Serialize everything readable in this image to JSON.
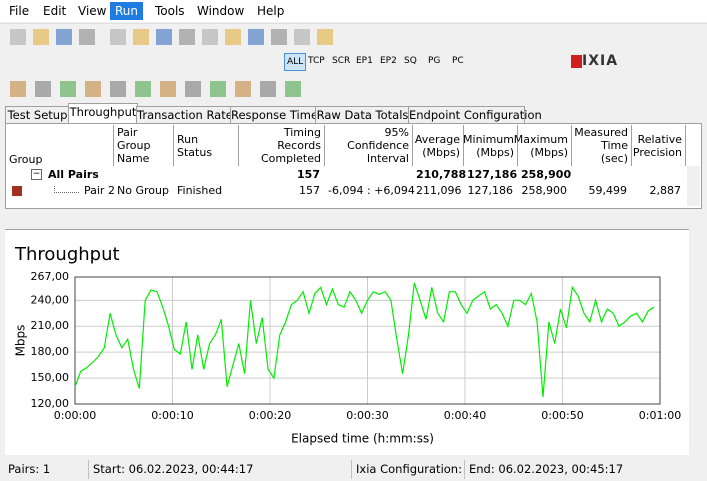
{
  "menu": [
    "File",
    "Edit",
    "View",
    "Run",
    "Tools",
    "Window",
    "Help"
  ],
  "toolbar_labels": [
    "ALL",
    "TCP",
    "SCR",
    "EP1",
    "EP2",
    "SQ",
    "PG",
    "PC"
  ],
  "brand": "IXIA",
  "tabs": [
    "Test Setup",
    "Throughput",
    "Transaction Rate",
    "Response Time",
    "Raw Data Totals",
    "Endpoint Configuration"
  ],
  "table": {
    "headers": [
      "Group",
      "Pair Group Name",
      "Run Status",
      "Timing Records Completed",
      "95% Confidence Interval",
      "Average (Mbps)",
      "Minimum (Mbps)",
      "Maximum (Mbps)",
      "Measured Time (sec)",
      "Relative Precision"
    ],
    "summary": {
      "group": "All Pairs",
      "timing_records": "157",
      "average": "210,788",
      "minimum": "127,186",
      "maximum": "258,900"
    },
    "pair": {
      "group": "Pair 2",
      "pair_group_name": "No Group",
      "run_status": "Finished",
      "timing_records": "157",
      "confidence": "-6,094 : +6,094",
      "average": "211,096",
      "minimum": "127,186",
      "maximum": "258,900",
      "measured_time": "59,499",
      "relative_precision": "2,887"
    }
  },
  "chart_data": {
    "type": "line",
    "title": "Throughput",
    "x_label": "Elapsed time (h:mm:ss)",
    "y_label": "Mbps",
    "color": "#00ee00",
    "grid": true,
    "x": [
      0,
      0.6,
      1.2,
      1.8,
      2.4,
      3,
      3.6,
      4.2,
      4.8,
      5.4,
      6,
      6.6,
      7.2,
      7.8,
      8.4,
      9,
      9.6,
      10.2,
      10.8,
      11.4,
      12,
      12.6,
      13.2,
      13.8,
      14.4,
      15,
      15.6,
      16.2,
      16.8,
      17.4,
      18,
      18.6,
      19.2,
      19.8,
      20.4,
      21,
      21.6,
      22.2,
      22.8,
      23.4,
      24,
      24.6,
      25.2,
      25.8,
      26.4,
      27,
      27.6,
      28.2,
      28.8,
      29.4,
      30,
      30.6,
      31.2,
      31.8,
      32.4,
      33,
      33.6,
      34.2,
      34.8,
      35.4,
      36,
      36.6,
      37.2,
      37.8,
      38.4,
      39,
      39.6,
      40.2,
      40.8,
      41.4,
      42,
      42.6,
      43.2,
      43.8,
      44.4,
      45,
      45.6,
      46.2,
      46.8,
      47.4,
      48,
      48.6,
      49.2,
      49.8,
      50.4,
      51,
      51.6,
      52.2,
      52.8,
      53.4,
      54,
      54.6,
      55.2,
      55.8,
      56.4,
      57,
      57.6,
      58.2,
      58.8,
      59.4
    ],
    "values": [
      140,
      158,
      162,
      168,
      175,
      185,
      225,
      200,
      185,
      195,
      160,
      138,
      240,
      252,
      250,
      232,
      210,
      183,
      178,
      215,
      160,
      200,
      160,
      190,
      200,
      218,
      140,
      165,
      190,
      155,
      240,
      190,
      220,
      160,
      150,
      200,
      215,
      235,
      240,
      250,
      225,
      248,
      255,
      235,
      253,
      235,
      232,
      250,
      240,
      225,
      240,
      250,
      247,
      250,
      240,
      195,
      155,
      200,
      260,
      240,
      218,
      255,
      225,
      215,
      250,
      250,
      235,
      225,
      240,
      245,
      250,
      230,
      235,
      225,
      210,
      240,
      240,
      235,
      248,
      215,
      128,
      215,
      190,
      230,
      208,
      255,
      245,
      225,
      215,
      240,
      215,
      230,
      225,
      210,
      215,
      222,
      225,
      215,
      228,
      232
    ],
    "xlim": [
      0,
      60
    ],
    "ylim": [
      120,
      267
    ],
    "xticks": [
      {
        "value": 0,
        "label": "0:00:00"
      },
      {
        "value": 10,
        "label": "0:00:10"
      },
      {
        "value": 20,
        "label": "0:00:20"
      },
      {
        "value": 30,
        "label": "0:00:30"
      },
      {
        "value": 40,
        "label": "0:00:40"
      },
      {
        "value": 50,
        "label": "0:00:50"
      },
      {
        "value": 60,
        "label": "0:01:00"
      }
    ],
    "yticks": [
      {
        "value": 120,
        "label": "120,00"
      },
      {
        "value": 150,
        "label": "150,00"
      },
      {
        "value": 180,
        "label": "180,00"
      },
      {
        "value": 210,
        "label": "210,00"
      },
      {
        "value": 240,
        "label": "240,00"
      },
      {
        "value": 267,
        "label": "267,00"
      }
    ]
  },
  "status_bar": [
    "Pairs: 1",
    "Start: 06.02.2023, 00:44:17",
    "Ixia Configuration:",
    "End: 06.02.2023, 00:45:17"
  ]
}
